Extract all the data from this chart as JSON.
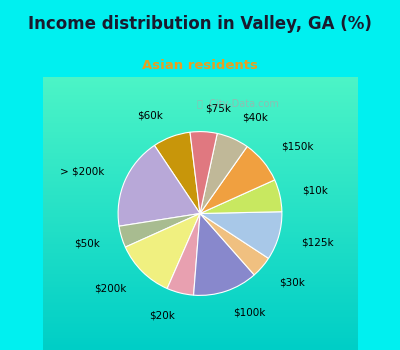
{
  "title": "Income distribution in Valley, GA (%)",
  "subtitle": "Asian residents",
  "subtitle_color": "#e8a020",
  "title_color": "#1a1a2e",
  "background_color": "#00f0f0",
  "chart_bg_gradient_top": "#d0ede0",
  "chart_bg_gradient_bot": "#c8e8d8",
  "watermark": "City-Data.com",
  "labels": [
    "$60k",
    "> $200k",
    "$50k",
    "$200k",
    "$20k",
    "$100k",
    "$30k",
    "$125k",
    "$10k",
    "$150k",
    "$40k",
    "$75k"
  ],
  "values": [
    7,
    17,
    4,
    11,
    5,
    12,
    4,
    9,
    6,
    8,
    6,
    5
  ],
  "colors": [
    "#c8960a",
    "#b8a8d8",
    "#a8bc90",
    "#f0f080",
    "#e8a0b0",
    "#8888cc",
    "#f0c080",
    "#a8c8e8",
    "#c8e860",
    "#f0a040",
    "#c0b898",
    "#e07880"
  ],
  "startangle": 97,
  "label_fontsize": 7.5,
  "title_fontsize": 12,
  "subtitle_fontsize": 9.5
}
